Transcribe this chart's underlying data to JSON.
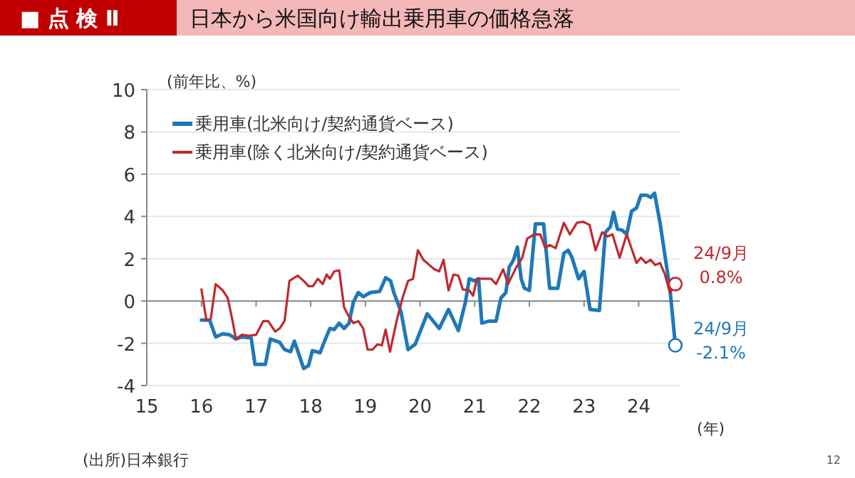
{
  "chart_data": {
    "type": "line",
    "title": "日本から米国向け輸出乗用車の価格急落",
    "ylabel": "(前年比、%)",
    "xlabel": "(年)",
    "annotations": [
      "■ 点 検 Ⅱ",
      {
        "text": "24/9月\n0.8%",
        "x": 24.67,
        "y": 0.8
      },
      {
        "text": "24/9月\n-2.1%",
        "x": 24.67,
        "y": -2.1
      },
      "(出所)日本銀行",
      "12"
    ],
    "xlim": [
      15,
      24.75
    ],
    "xticks": [
      15,
      16,
      17,
      18,
      19,
      20,
      21,
      22,
      23,
      24
    ],
    "ylim": [
      -4,
      10
    ],
    "yticks": [
      -4,
      -2,
      0,
      2,
      4,
      6,
      8,
      10
    ],
    "grid": "y",
    "legend": "top left",
    "marker": "none",
    "line_style": "solid",
    "series": [
      {
        "name": "乗用車(北米向け/契約通貨ベース)",
        "color": "#1f78b8",
        "x": [
          16.0,
          16.15,
          16.26,
          16.39,
          16.52,
          16.63,
          16.74,
          16.91,
          16.98,
          17.17,
          17.26,
          17.43,
          17.52,
          17.63,
          17.7,
          17.78,
          17.87,
          17.96,
          18.03,
          18.17,
          18.26,
          18.35,
          18.43,
          18.52,
          18.61,
          18.7,
          18.78,
          18.87,
          18.96,
          19.09,
          19.26,
          19.37,
          19.46,
          19.52,
          19.65,
          19.78,
          19.91,
          20.13,
          20.35,
          20.52,
          20.7,
          20.83,
          20.9,
          21.0,
          21.07,
          21.13,
          21.26,
          21.39,
          21.48,
          21.57,
          21.63,
          21.71,
          21.78,
          21.85,
          21.91,
          22.0,
          22.11,
          22.26,
          22.37,
          22.52,
          22.63,
          22.71,
          22.78,
          22.9,
          23.0,
          23.11,
          23.28,
          23.39,
          23.48,
          23.54,
          23.61,
          23.7,
          23.78,
          23.87,
          23.96,
          24.04,
          24.15,
          24.22,
          24.29,
          24.39,
          24.48,
          24.57,
          24.67
        ],
        "values": [
          -0.9,
          -0.9,
          -1.7,
          -1.55,
          -1.6,
          -1.8,
          -1.7,
          -1.75,
          -3.0,
          -3.0,
          -1.8,
          -1.95,
          -2.3,
          -2.4,
          -1.9,
          -2.5,
          -3.2,
          -3.05,
          -2.35,
          -2.45,
          -1.85,
          -1.3,
          -1.35,
          -1.05,
          -1.3,
          -1.05,
          -0.05,
          0.4,
          0.2,
          0.4,
          0.45,
          1.1,
          0.95,
          0.4,
          -0.5,
          -2.3,
          -2.05,
          -0.6,
          -1.3,
          -0.4,
          -1.4,
          -0.05,
          1.05,
          0.95,
          1.05,
          -1.05,
          -0.95,
          -0.95,
          0.15,
          0.4,
          1.6,
          1.95,
          2.55,
          1.05,
          0.6,
          0.5,
          3.65,
          3.65,
          0.6,
          0.6,
          2.25,
          2.4,
          2.05,
          1.05,
          1.4,
          -0.4,
          -0.45,
          3.25,
          3.5,
          4.2,
          3.4,
          3.35,
          3.15,
          4.25,
          4.4,
          5.0,
          5.0,
          4.9,
          5.1,
          3.7,
          2.15,
          0.6,
          -2.1
        ]
      },
      {
        "name": "乗用車(除く北米向け/契約通貨ベース)",
        "color": "#c0282d",
        "x": [
          16.0,
          16.09,
          16.17,
          16.26,
          16.39,
          16.48,
          16.57,
          16.63,
          16.74,
          16.87,
          17.0,
          17.13,
          17.22,
          17.35,
          17.43,
          17.52,
          17.61,
          17.76,
          17.87,
          17.96,
          18.04,
          18.13,
          18.22,
          18.29,
          18.35,
          18.43,
          18.52,
          18.61,
          18.7,
          18.78,
          18.87,
          18.96,
          19.04,
          19.13,
          19.22,
          19.3,
          19.37,
          19.45,
          19.57,
          19.68,
          19.78,
          19.87,
          19.96,
          20.06,
          20.17,
          20.26,
          20.35,
          20.43,
          20.52,
          20.61,
          20.7,
          20.78,
          20.9,
          20.97,
          21.04,
          21.17,
          21.3,
          21.39,
          21.52,
          21.61,
          21.74,
          21.87,
          21.96,
          22.09,
          22.2,
          22.29,
          22.37,
          22.48,
          22.63,
          22.74,
          22.87,
          22.98,
          23.1,
          23.21,
          23.33,
          23.43,
          23.52,
          23.65,
          23.78,
          23.96,
          24.04,
          24.13,
          24.22,
          24.3,
          24.39,
          24.48,
          24.57,
          24.67
        ],
        "values": [
          0.55,
          -0.9,
          -0.85,
          0.8,
          0.5,
          0.15,
          -0.95,
          -1.8,
          -1.6,
          -1.65,
          -1.6,
          -0.95,
          -0.95,
          -1.45,
          -1.3,
          -0.95,
          0.95,
          1.2,
          0.95,
          0.7,
          0.7,
          1.05,
          0.8,
          1.25,
          1.05,
          1.4,
          1.45,
          -0.3,
          -0.75,
          -1.05,
          -0.95,
          -1.3,
          -2.3,
          -2.3,
          -2.05,
          -2.1,
          -1.35,
          -2.4,
          -0.95,
          0.15,
          0.95,
          1.05,
          2.4,
          1.95,
          1.7,
          1.5,
          1.4,
          1.95,
          0.5,
          1.25,
          1.2,
          0.55,
          0.5,
          0.25,
          1.05,
          1.05,
          1.05,
          0.8,
          1.5,
          0.8,
          1.5,
          2.05,
          2.95,
          3.15,
          3.15,
          2.5,
          2.65,
          2.5,
          3.7,
          3.15,
          3.7,
          3.75,
          3.6,
          2.4,
          3.25,
          3.05,
          3.15,
          2.05,
          3.15,
          1.8,
          2.05,
          1.8,
          1.95,
          1.7,
          1.8,
          1.25,
          0.4,
          0.8
        ]
      }
    ]
  }
}
